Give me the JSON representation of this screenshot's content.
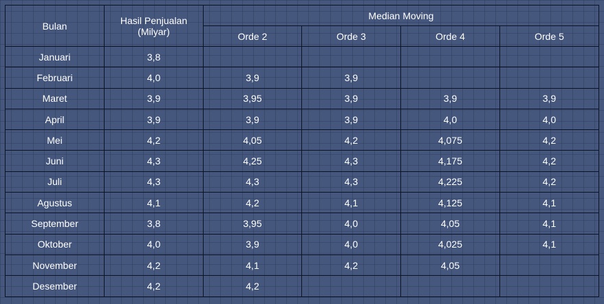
{
  "headers": {
    "bulan": "Bulan",
    "hasil": "Hasil Penjualan (Milyar)",
    "median_group": "Median Moving",
    "orde": [
      "Orde 2",
      "Orde 3",
      "Orde 4",
      "Orde 5"
    ]
  },
  "rows": [
    {
      "bulan": "Januari",
      "hasil": "3,8",
      "o2": "",
      "o3": "",
      "o4": "",
      "o5": ""
    },
    {
      "bulan": "Februari",
      "hasil": "4,0",
      "o2": "3,9",
      "o3": "3,9",
      "o4": "",
      "o5": ""
    },
    {
      "bulan": "Maret",
      "hasil": "3,9",
      "o2": "3,95",
      "o3": "3,9",
      "o4": "3,9",
      "o5": "3,9"
    },
    {
      "bulan": "April",
      "hasil": "3,9",
      "o2": "3,9",
      "o3": "3,9",
      "o4": "4,0",
      "o5": "4,0"
    },
    {
      "bulan": "Mei",
      "hasil": "4,2",
      "o2": "4,05",
      "o3": "4,2",
      "o4": "4,075",
      "o5": "4,2"
    },
    {
      "bulan": "Juni",
      "hasil": "4,3",
      "o2": "4,25",
      "o3": "4,3",
      "o4": "4,175",
      "o5": "4,2"
    },
    {
      "bulan": "Juli",
      "hasil": "4,3",
      "o2": "4,3",
      "o3": "4,3",
      "o4": "4,225",
      "o5": "4,2"
    },
    {
      "bulan": "Agustus",
      "hasil": "4,1",
      "o2": "4,2",
      "o3": "4,1",
      "o4": "4,125",
      "o5": "4,1"
    },
    {
      "bulan": "September",
      "hasil": "3,8",
      "o2": "3,95",
      "o3": "4,0",
      "o4": "4,05",
      "o5": "4,1"
    },
    {
      "bulan": "Oktober",
      "hasil": "4,0",
      "o2": "3,9",
      "o3": "4,0",
      "o4": "4,025",
      "o5": "4,1"
    },
    {
      "bulan": "November",
      "hasil": "4,2",
      "o2": "4,1",
      "o3": "4,2",
      "o4": "4,05",
      "o5": ""
    },
    {
      "bulan": "Desember",
      "hasil": "4,2",
      "o2": "4,2",
      "o3": "",
      "o4": "",
      "o5": ""
    }
  ],
  "colors": {
    "background": "#45577d",
    "border": "#0c1326",
    "text": "#ffffff"
  }
}
